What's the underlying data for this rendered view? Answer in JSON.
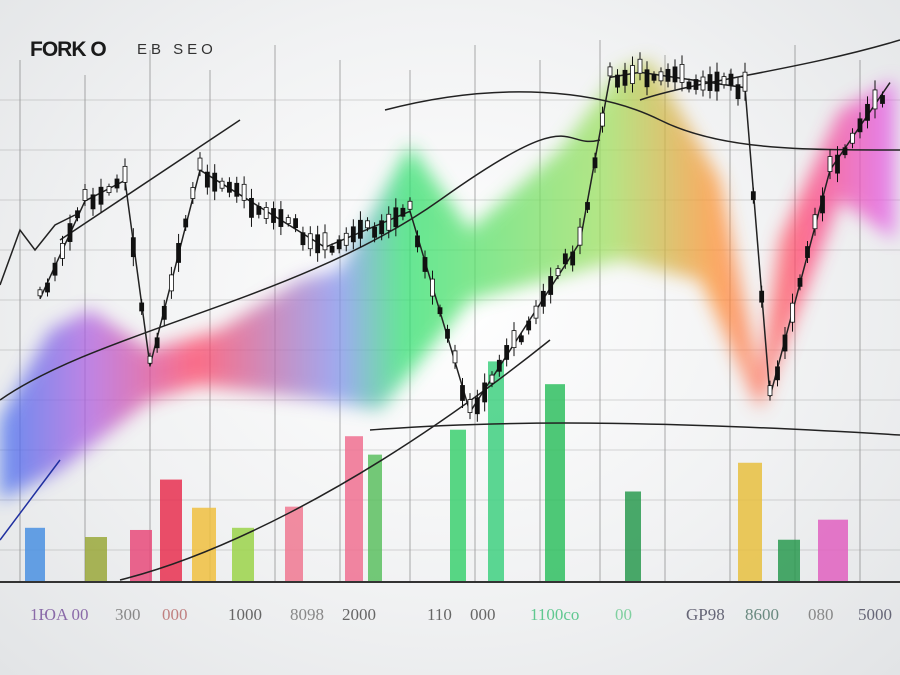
{
  "header": {
    "brand": "FORK O",
    "brand_sub": "EB SEO"
  },
  "chart_data": {
    "type": "bar",
    "title": "",
    "xlabel": "",
    "ylabel": "",
    "grid": true,
    "tick_labels": [
      "1ЮA 00",
      "300",
      "000",
      "1000",
      "8098",
      "2000",
      "110",
      "000",
      "1100co",
      "00",
      "GP98",
      "8600",
      "080",
      "5000"
    ],
    "tick_colors": [
      "#8a6aa8",
      "#888",
      "#c08080",
      "#666",
      "#888",
      "#666",
      "#666",
      "#666",
      "#60c890",
      "#80d0a0",
      "#667",
      "#6a8a80",
      "#888",
      "#667"
    ],
    "ylim": [
      0,
      100
    ],
    "bars": [
      {
        "value": 10,
        "color": "#4a90e2"
      },
      {
        "value": 8.3,
        "color": "#9aa83a"
      },
      {
        "value": 9.6,
        "color": "#e84a7a"
      },
      {
        "value": 18.9,
        "color": "#e83050"
      },
      {
        "value": 13.7,
        "color": "#f0c040"
      },
      {
        "value": 10,
        "color": "#9bd44a"
      },
      {
        "value": 13.9,
        "color": "#f07890"
      },
      {
        "value": 26.9,
        "color": "#f07090"
      },
      {
        "value": 23.5,
        "color": "#5cc060"
      },
      {
        "value": 28.1,
        "color": "#3cd070"
      },
      {
        "value": 40.7,
        "color": "#40d080"
      },
      {
        "value": 36.5,
        "color": "#30c060"
      },
      {
        "value": 16.7,
        "color": "#2a9a50"
      },
      {
        "value": 22,
        "color": "#e8c040"
      },
      {
        "value": 7.8,
        "color": "#2a9a50"
      },
      {
        "value": 11.5,
        "color": "#e060c0"
      }
    ],
    "price_series": [
      55,
      74,
      78,
      42,
      80,
      65,
      72,
      33,
      66,
      98,
      99,
      96,
      36,
      80,
      97
    ]
  }
}
